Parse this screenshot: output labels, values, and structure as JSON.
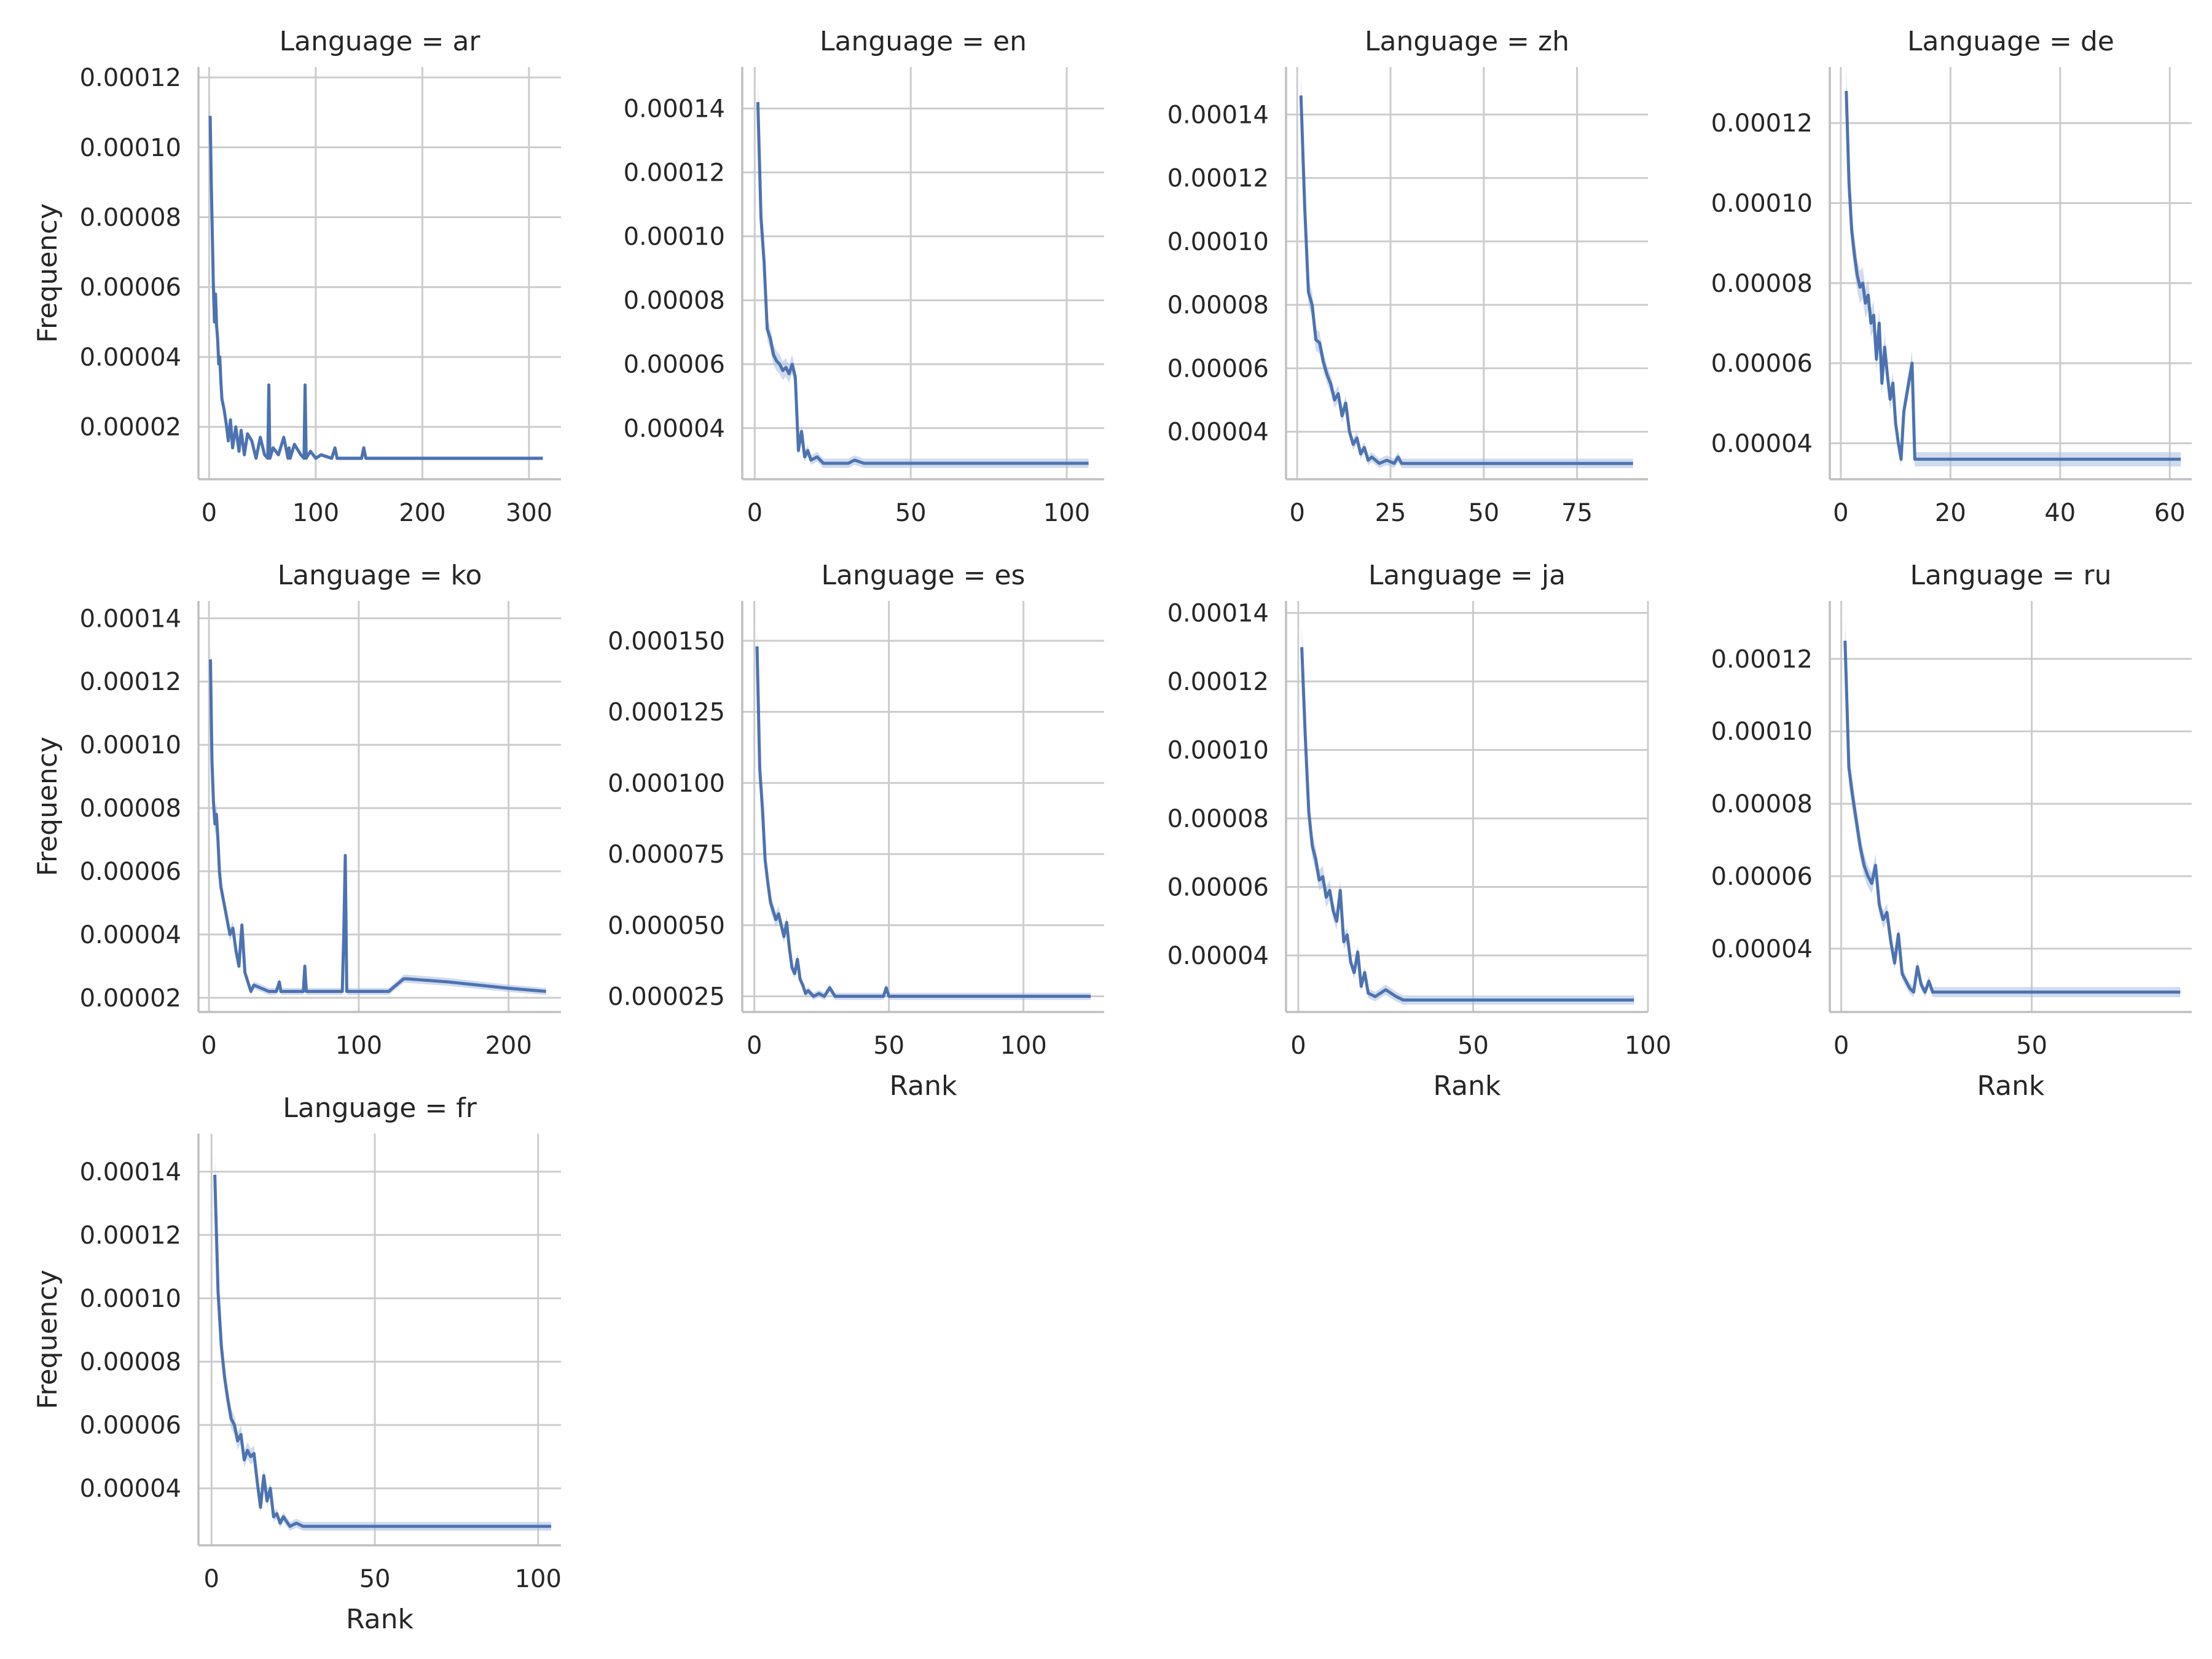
{
  "colors": {
    "line": "#4c72b0",
    "band": "#a9bde0",
    "grid": "#cccccc",
    "axis": "#bfbfbf",
    "text": "#262626"
  },
  "chart_data": [
    {
      "type": "line",
      "title": "Language = ar",
      "xlabel": "",
      "ylabel": "Frequency",
      "xlim": [
        -10,
        330
      ],
      "ylim": [
        5e-06,
        0.000123
      ],
      "xticks": [
        0,
        100,
        200,
        300
      ],
      "yticks": [
        2e-05,
        4e-05,
        6e-05,
        8e-05,
        0.0001,
        0.00012
      ],
      "ytick_labels": [
        "0.00002",
        "0.00004",
        "0.00006",
        "0.00008",
        "0.00010",
        "0.00012"
      ],
      "grid": true,
      "x": [
        1,
        2,
        3,
        4,
        5,
        6,
        7,
        8,
        9,
        10,
        11,
        12,
        14,
        16,
        18,
        20,
        22,
        25,
        28,
        30,
        33,
        36,
        40,
        44,
        48,
        52,
        55,
        56,
        57,
        60,
        65,
        70,
        74,
        75,
        76,
        80,
        86,
        89,
        90,
        91,
        95,
        100,
        105,
        115,
        118,
        120,
        130,
        143,
        145,
        147,
        150,
        200,
        250,
        313
      ],
      "y": [
        0.000109,
        9e-05,
        7.5e-05,
        6e-05,
        5e-05,
        5.8e-05,
        4.9e-05,
        4.5e-05,
        3.8e-05,
        4e-05,
        3.3e-05,
        2.8e-05,
        2.5e-05,
        2.1e-05,
        1.6e-05,
        2.2e-05,
        1.4e-05,
        2e-05,
        1.3e-05,
        1.9e-05,
        1.2e-05,
        1.8e-05,
        1.6e-05,
        1.1e-05,
        1.7e-05,
        1.2e-05,
        1.1e-05,
        3.2e-05,
        1.1e-05,
        1.4e-05,
        1.2e-05,
        1.7e-05,
        1.1e-05,
        1.4e-05,
        1.1e-05,
        1.5e-05,
        1.2e-05,
        1.1e-05,
        3.2e-05,
        1.1e-05,
        1.3e-05,
        1.1e-05,
        1.2e-05,
        1.1e-05,
        1.4e-05,
        1.1e-05,
        1.1e-05,
        1.1e-05,
        1.4e-05,
        1.1e-05,
        1.1e-05,
        1.1e-05,
        1.1e-05,
        1.1e-05
      ]
    },
    {
      "type": "line",
      "title": "Language = en",
      "xlabel": "",
      "ylabel": "",
      "xlim": [
        -4,
        112
      ],
      "ylim": [
        2.4e-05,
        0.000153
      ],
      "xticks": [
        0,
        50,
        100
      ],
      "yticks": [
        4e-05,
        6e-05,
        8e-05,
        0.0001,
        0.00012,
        0.00014
      ],
      "ytick_labels": [
        "0.00004",
        "0.00006",
        "0.00008",
        "0.00010",
        "0.00012",
        "0.00014"
      ],
      "grid": true,
      "x": [
        1,
        2,
        3,
        4,
        5,
        6,
        7,
        8,
        9,
        10,
        11,
        12,
        13,
        14,
        15,
        16,
        17,
        18,
        20,
        22,
        25,
        28,
        30,
        32,
        35,
        50,
        80,
        107
      ],
      "y": [
        0.000142,
        0.000106,
        9.2e-05,
        7.1e-05,
        6.8e-05,
        6.3e-05,
        6.1e-05,
        6e-05,
        5.8e-05,
        5.9e-05,
        5.7e-05,
        6e-05,
        5.6e-05,
        3.3e-05,
        3.9e-05,
        3.1e-05,
        3.3e-05,
        3e-05,
        3.1e-05,
        2.9e-05,
        2.9e-05,
        2.9e-05,
        2.9e-05,
        3e-05,
        2.9e-05,
        2.9e-05,
        2.9e-05,
        2.9e-05
      ]
    },
    {
      "type": "line",
      "title": "Language = zh",
      "xlabel": "",
      "ylabel": "",
      "xlim": [
        -3,
        94
      ],
      "ylim": [
        2.5e-05,
        0.000155
      ],
      "xticks": [
        0,
        25,
        50,
        75
      ],
      "yticks": [
        4e-05,
        6e-05,
        8e-05,
        0.0001,
        0.00012,
        0.00014
      ],
      "ytick_labels": [
        "0.00004",
        "0.00006",
        "0.00008",
        "0.00010",
        "0.00012",
        "0.00014"
      ],
      "grid": true,
      "x": [
        1,
        2,
        3,
        4,
        5,
        6,
        7,
        8,
        9,
        10,
        11,
        12,
        13,
        14,
        15,
        16,
        17,
        18,
        19,
        20,
        22,
        24,
        26,
        27,
        28,
        30,
        40,
        60,
        90
      ],
      "y": [
        0.000146,
        0.000111,
        8.4e-05,
        8e-05,
        6.9e-05,
        6.8e-05,
        6.2e-05,
        5.8e-05,
        5.5e-05,
        5e-05,
        5.2e-05,
        4.5e-05,
        4.9e-05,
        4e-05,
        3.6e-05,
        3.8e-05,
        3.3e-05,
        3.5e-05,
        3.1e-05,
        3.2e-05,
        3e-05,
        3.1e-05,
        3e-05,
        3.2e-05,
        3e-05,
        3e-05,
        3e-05,
        3e-05,
        3e-05
      ]
    },
    {
      "type": "line",
      "title": "Language = de",
      "xlabel": "",
      "ylabel": "",
      "xlim": [
        -2,
        64
      ],
      "ylim": [
        3.1e-05,
        0.000134
      ],
      "xticks": [
        0,
        20,
        40,
        60
      ],
      "yticks": [
        4e-05,
        6e-05,
        8e-05,
        0.0001,
        0.00012
      ],
      "ytick_labels": [
        "0.00004",
        "0.00006",
        "0.00008",
        "0.00010",
        "0.00012"
      ],
      "grid": true,
      "x": [
        1,
        1.5,
        2,
        2.5,
        3,
        3.5,
        4,
        4.5,
        5,
        5.5,
        6,
        6.5,
        7,
        7.5,
        8,
        8.5,
        9,
        9.5,
        10,
        10.5,
        11,
        11.5,
        12,
        12.5,
        13,
        13.5,
        14,
        20,
        40,
        62
      ],
      "y": [
        0.000128,
        0.000105,
        9.3e-05,
        8.7e-05,
        8.2e-05,
        7.9e-05,
        8e-05,
        7.5e-05,
        7.7e-05,
        7e-05,
        7.2e-05,
        6.1e-05,
        7e-05,
        5.5e-05,
        6.4e-05,
        5.7e-05,
        5.1e-05,
        5.5e-05,
        4.5e-05,
        4e-05,
        3.6e-05,
        4.8e-05,
        5.2e-05,
        5.6e-05,
        6e-05,
        3.6e-05,
        3.6e-05,
        3.6e-05,
        3.6e-05,
        3.6e-05
      ]
    },
    {
      "type": "line",
      "title": "Language = ko",
      "xlabel": "",
      "ylabel": "Frequency",
      "xlim": [
        -7,
        235
      ],
      "ylim": [
        1.55e-05,
        0.0001455
      ],
      "xticks": [
        0,
        100,
        200
      ],
      "yticks": [
        2e-05,
        4e-05,
        6e-05,
        8e-05,
        0.0001,
        0.00012,
        0.00014
      ],
      "ytick_labels": [
        "0.00002",
        "0.00004",
        "0.00006",
        "0.00008",
        "0.00010",
        "0.00012",
        "0.00014"
      ],
      "grid": true,
      "x": [
        1,
        2,
        3,
        4,
        5,
        6,
        7,
        8,
        10,
        12,
        14,
        16,
        18,
        20,
        22,
        24,
        26,
        28,
        30,
        40,
        45,
        47,
        48,
        60,
        63,
        64,
        65,
        80,
        89,
        90,
        91,
        92,
        95,
        110,
        120,
        130,
        132,
        160,
        200,
        225
      ],
      "y": [
        0.000127,
        9.5e-05,
        8.2e-05,
        7.5e-05,
        7.8e-05,
        7e-05,
        6e-05,
        5.5e-05,
        5e-05,
        4.5e-05,
        4e-05,
        4.2e-05,
        3.5e-05,
        3e-05,
        4.3e-05,
        2.8e-05,
        2.5e-05,
        2.2e-05,
        2.4e-05,
        2.2e-05,
        2.2e-05,
        2.5e-05,
        2.2e-05,
        2.2e-05,
        2.2e-05,
        3e-05,
        2.2e-05,
        2.2e-05,
        2.2e-05,
        4e-05,
        6.5e-05,
        2.2e-05,
        2.2e-05,
        2.2e-05,
        2.2e-05,
        2.6e-05,
        2.6e-05,
        2.5e-05,
        2.3e-05,
        2.2e-05
      ]
    },
    {
      "type": "line",
      "title": "Language = es",
      "xlabel": "Rank",
      "ylabel": "",
      "xlim": [
        -4.5,
        130
      ],
      "ylim": [
        1.95e-05,
        0.000164
      ],
      "xticks": [
        0,
        50,
        100
      ],
      "yticks": [
        2.5e-05,
        5e-05,
        7.5e-05,
        0.0001,
        0.000125,
        0.00015
      ],
      "ytick_labels": [
        "0.000025",
        "0.000050",
        "0.000075",
        "0.000100",
        "0.000125",
        "0.000150"
      ],
      "grid": true,
      "x": [
        1,
        2,
        3,
        4,
        5,
        6,
        7,
        8,
        9,
        10,
        11,
        12,
        13,
        14,
        15,
        16,
        17,
        18,
        19,
        20,
        22,
        24,
        26,
        28,
        30,
        40,
        48,
        49,
        50,
        80,
        125
      ],
      "y": [
        0.000148,
        0.000105,
        9.1e-05,
        7.3e-05,
        6.5e-05,
        5.8e-05,
        5.5e-05,
        5.2e-05,
        5.4e-05,
        5e-05,
        4.6e-05,
        5.1e-05,
        4.2e-05,
        3.5e-05,
        3.3e-05,
        3.8e-05,
        3.1e-05,
        2.9e-05,
        2.6e-05,
        2.7e-05,
        2.5e-05,
        2.6e-05,
        2.5e-05,
        2.8e-05,
        2.5e-05,
        2.5e-05,
        2.5e-05,
        2.8e-05,
        2.5e-05,
        2.5e-05,
        2.5e-05
      ]
    },
    {
      "type": "line",
      "title": "Language = ja",
      "xlabel": "Rank",
      "ylabel": "",
      "xlim": [
        -3.5,
        100
      ],
      "ylim": [
        2.35e-05,
        0.0001435
      ],
      "xticks": [
        0,
        50,
        100
      ],
      "yticks": [
        4e-05,
        6e-05,
        8e-05,
        0.0001,
        0.00012,
        0.00014
      ],
      "ytick_labels": [
        "0.00004",
        "0.00006",
        "0.00008",
        "0.00010",
        "0.00012",
        "0.00014"
      ],
      "grid": true,
      "x": [
        1,
        2,
        3,
        4,
        5,
        6,
        7,
        8,
        9,
        10,
        11,
        12,
        13,
        14,
        15,
        16,
        17,
        18,
        19,
        20,
        22,
        25,
        28,
        30,
        40,
        60,
        96
      ],
      "y": [
        0.00013,
        0.000104,
        8.2e-05,
        7.2e-05,
        6.8e-05,
        6.2e-05,
        6.3e-05,
        5.7e-05,
        5.9e-05,
        5.3e-05,
        5e-05,
        5.9e-05,
        4.4e-05,
        4.6e-05,
        3.8e-05,
        3.5e-05,
        4.1e-05,
        3.1e-05,
        3.5e-05,
        2.9e-05,
        2.8e-05,
        3e-05,
        2.8e-05,
        2.7e-05,
        2.7e-05,
        2.7e-05,
        2.7e-05
      ]
    },
    {
      "type": "line",
      "title": "Language = ru",
      "xlabel": "Rank",
      "ylabel": "",
      "xlim": [
        -3,
        92
      ],
      "ylim": [
        2.25e-05,
        0.000136
      ],
      "xticks": [
        0,
        50
      ],
      "yticks": [
        4e-05,
        6e-05,
        8e-05,
        0.0001,
        0.00012
      ],
      "ytick_labels": [
        "0.00004",
        "0.00006",
        "0.00008",
        "0.00010",
        "0.00012"
      ],
      "grid": true,
      "x": [
        1,
        2,
        3,
        4,
        5,
        6,
        7,
        8,
        9,
        10,
        11,
        12,
        13,
        14,
        15,
        16,
        17,
        18,
        19,
        20,
        21,
        22,
        23,
        24,
        26,
        40,
        60,
        89
      ],
      "y": [
        0.000125,
        9e-05,
        8.2e-05,
        7.5e-05,
        6.8e-05,
        6.3e-05,
        6e-05,
        5.8e-05,
        6.3e-05,
        5.2e-05,
        4.8e-05,
        5e-05,
        4.2e-05,
        3.6e-05,
        4.4e-05,
        3.3e-05,
        3.1e-05,
        2.9e-05,
        2.8e-05,
        3.5e-05,
        3e-05,
        2.8e-05,
        3.1e-05,
        2.8e-05,
        2.8e-05,
        2.8e-05,
        2.8e-05,
        2.8e-05
      ]
    },
    {
      "type": "line",
      "title": "Language = fr",
      "xlabel": "Rank",
      "ylabel": "Frequency",
      "xlim": [
        -4,
        107
      ],
      "ylim": [
        2.2e-05,
        0.000152
      ],
      "xticks": [
        0,
        50,
        100
      ],
      "yticks": [
        4e-05,
        6e-05,
        8e-05,
        0.0001,
        0.00012,
        0.00014
      ],
      "ytick_labels": [
        "0.00004",
        "0.00006",
        "0.00008",
        "0.00010",
        "0.00012",
        "0.00014"
      ],
      "grid": true,
      "x": [
        1,
        2,
        3,
        4,
        5,
        6,
        7,
        8,
        9,
        10,
        11,
        12,
        13,
        14,
        15,
        16,
        17,
        18,
        19,
        20,
        21,
        22,
        24,
        26,
        28,
        40,
        70,
        104
      ],
      "y": [
        0.000139,
        0.000102,
        8.5e-05,
        7.5e-05,
        6.8e-05,
        6.2e-05,
        6e-05,
        5.5e-05,
        5.7e-05,
        4.9e-05,
        5.2e-05,
        5e-05,
        5.1e-05,
        4.2e-05,
        3.4e-05,
        4.4e-05,
        3.6e-05,
        4e-05,
        3.1e-05,
        3.2e-05,
        2.9e-05,
        3.1e-05,
        2.8e-05,
        2.9e-05,
        2.8e-05,
        2.8e-05,
        2.8e-05,
        2.8e-05
      ]
    }
  ]
}
